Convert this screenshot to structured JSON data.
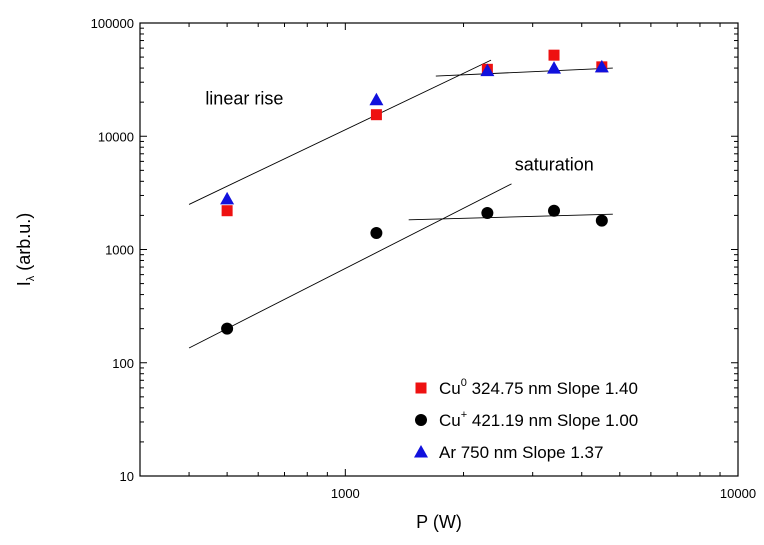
{
  "chart_data": {
    "type": "scatter",
    "xscale": "log",
    "yscale": "log",
    "xlim": [
      300,
      10000
    ],
    "ylim": [
      10,
      100000
    ],
    "xticks": [
      1000,
      10000
    ],
    "xtick_labels": [
      "1000",
      "10000"
    ],
    "yticks": [
      10,
      100,
      1000,
      10000,
      100000
    ],
    "ytick_labels": [
      "10",
      "100",
      "1000",
      "10000",
      "100000"
    ],
    "xlabel": "P (W)",
    "ylabel_main": "I",
    "ylabel_sub": "λ",
    "ylabel_rest": " (arb.u.)",
    "grid": false,
    "legend_position": "bottom-right",
    "series": [
      {
        "name": "Cu⁰ 324.75 nm Slope 1.40",
        "legend_base": "Cu",
        "legend_sup": "0",
        "legend_rest": " 324.75 nm Slope 1.40",
        "marker": "square",
        "color": "#ee1111",
        "x": [
          500,
          1200,
          2300,
          3400,
          4500
        ],
        "y": [
          2200,
          15500,
          39000,
          52000,
          41000
        ]
      },
      {
        "name": "Cu⁺ 421.19 nm Slope 1.00",
        "legend_base": "Cu",
        "legend_sup": "+",
        "legend_rest": " 421.19 nm Slope 1.00",
        "marker": "circle",
        "color": "#000000",
        "x": [
          500,
          1200,
          2300,
          3400,
          4500
        ],
        "y": [
          200,
          1400,
          2100,
          2200,
          1800
        ]
      },
      {
        "name": "Ar 750 nm Slope 1.37",
        "legend_base": "Ar",
        "legend_sup": "",
        "legend_rest": " 750 nm Slope 1.37",
        "marker": "triangle",
        "color": "#1111dd",
        "x": [
          500,
          1200,
          2300,
          3400,
          4500
        ],
        "y": [
          2800,
          21000,
          38000,
          40000,
          41000
        ]
      }
    ],
    "fit_lines": [
      {
        "x": [
          400,
          2350
        ],
        "y": [
          2500,
          47000
        ]
      },
      {
        "x": [
          1700,
          4800
        ],
        "y": [
          34000,
          40000
        ]
      },
      {
        "x": [
          400,
          2650
        ],
        "y": [
          135,
          3800
        ]
      },
      {
        "x": [
          1450,
          4800
        ],
        "y": [
          1830,
          2050
        ]
      }
    ],
    "annotations": [
      {
        "text": "linear rise",
        "x": 440,
        "y": 19000
      },
      {
        "text": "saturation",
        "x": 2700,
        "y": 5000
      }
    ]
  }
}
